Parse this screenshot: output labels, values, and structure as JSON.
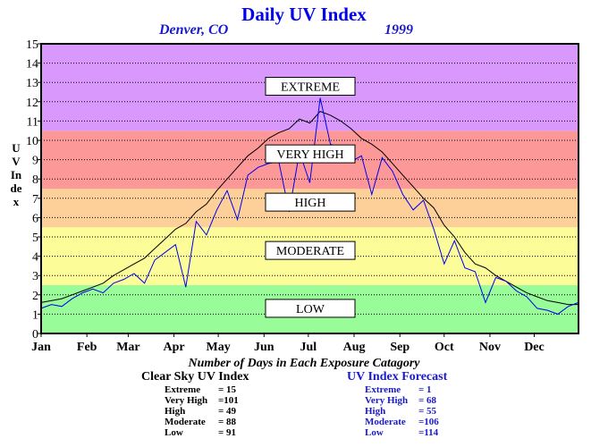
{
  "header": {
    "title": "Daily UV Index",
    "location": "Denver, CO",
    "year": "1999",
    "y_axis_label": "UV Index"
  },
  "footer": {
    "days_title": "Number of Days in Each Exposure Catagory",
    "clear_sky": {
      "title": "Clear Sky UV Index",
      "rows": [
        {
          "label": "Extreme",
          "value": "= 15"
        },
        {
          "label": "Very High",
          "value": "=101"
        },
        {
          "label": "High",
          "value": "= 49"
        },
        {
          "label": "Moderate",
          "value": "= 88"
        },
        {
          "label": "Low",
          "value": "= 91"
        }
      ]
    },
    "forecast": {
      "title": "UV Index Forecast",
      "rows": [
        {
          "label": "Extreme",
          "value": "= 1"
        },
        {
          "label": "Very High",
          "value": "= 68"
        },
        {
          "label": "High",
          "value": "= 55"
        },
        {
          "label": "Moderate",
          "value": "=106"
        },
        {
          "label": "Low",
          "value": "=114"
        }
      ]
    }
  },
  "chart_data": {
    "type": "line",
    "title": "Daily UV Index",
    "ylabel": "UV Index",
    "xlabel": "",
    "ylim": [
      0,
      15
    ],
    "yticks": [
      0,
      1,
      2,
      3,
      4,
      5,
      6,
      7,
      8,
      9,
      10,
      11,
      12,
      13,
      14,
      15
    ],
    "xlim_days": [
      1,
      365
    ],
    "months": [
      "Jan",
      "Feb",
      "Mar",
      "Apr",
      "May",
      "Jun",
      "Jul",
      "Aug",
      "Sep",
      "Oct",
      "Nov",
      "Dec"
    ],
    "grid": true,
    "bands": [
      {
        "label": "LOW",
        "from": 0,
        "to": 2.5,
        "color": "#98fc98",
        "label_y": 1.3
      },
      {
        "label": "MODERATE",
        "from": 2.5,
        "to": 5.5,
        "color": "#fcfc98",
        "label_y": 4.3
      },
      {
        "label": "HIGH",
        "from": 5.5,
        "to": 7.5,
        "color": "#fcd098",
        "label_y": 6.8
      },
      {
        "label": "VERY HIGH",
        "from": 7.5,
        "to": 10.5,
        "color": "#fc9898",
        "label_y": 9.3
      },
      {
        "label": "EXTREME",
        "from": 10.5,
        "to": 15,
        "color": "#d898fc",
        "label_y": 12.8
      }
    ],
    "series": [
      {
        "color": "#000000",
        "x": [
          1,
          8,
          15,
          22,
          29,
          36,
          43,
          50,
          57,
          64,
          71,
          78,
          85,
          92,
          99,
          106,
          113,
          120,
          127,
          134,
          141,
          148,
          155,
          162,
          169,
          176,
          183,
          190,
          197,
          204,
          211,
          218,
          225,
          232,
          239,
          246,
          253,
          260,
          267,
          274,
          281,
          288,
          295,
          302,
          309,
          316,
          323,
          330,
          337,
          344,
          351,
          358,
          365
        ],
        "y": [
          1.6,
          1.7,
          1.8,
          2.0,
          2.2,
          2.4,
          2.6,
          3.0,
          3.3,
          3.6,
          3.9,
          4.4,
          4.9,
          5.4,
          5.7,
          6.3,
          6.7,
          7.4,
          8.0,
          8.6,
          9.2,
          9.6,
          10.1,
          10.4,
          10.6,
          11.1,
          10.9,
          11.5,
          11.3,
          11.0,
          10.6,
          10.1,
          9.8,
          9.4,
          8.8,
          8.2,
          7.6,
          7.0,
          6.5,
          5.6,
          5.0,
          4.2,
          3.6,
          3.4,
          3.0,
          2.7,
          2.4,
          2.1,
          1.9,
          1.7,
          1.6,
          1.5,
          1.5
        ]
      },
      {
        "color": "#0000ee",
        "x": [
          1,
          8,
          15,
          22,
          29,
          36,
          43,
          50,
          57,
          64,
          71,
          78,
          85,
          92,
          99,
          106,
          113,
          120,
          127,
          134,
          141,
          148,
          155,
          162,
          169,
          176,
          183,
          190,
          197,
          204,
          211,
          218,
          225,
          232,
          239,
          246,
          253,
          260,
          267,
          274,
          281,
          288,
          295,
          302,
          309,
          316,
          323,
          330,
          337,
          344,
          351,
          358,
          365
        ],
        "y": [
          1.3,
          1.5,
          1.4,
          1.8,
          2.1,
          2.3,
          2.1,
          2.6,
          2.8,
          3.1,
          2.6,
          3.8,
          4.2,
          4.6,
          2.4,
          5.8,
          5.1,
          6.4,
          7.4,
          5.9,
          8.2,
          8.6,
          8.8,
          8.9,
          6.3,
          9.4,
          7.8,
          12.2,
          9.8,
          9.6,
          8.9,
          9.2,
          7.2,
          9.1,
          8.4,
          7.2,
          6.4,
          6.9,
          5.4,
          3.6,
          4.8,
          3.4,
          3.2,
          1.6,
          2.9,
          2.7,
          2.2,
          1.9,
          1.3,
          1.2,
          1.0,
          1.4,
          1.6
        ]
      }
    ]
  }
}
